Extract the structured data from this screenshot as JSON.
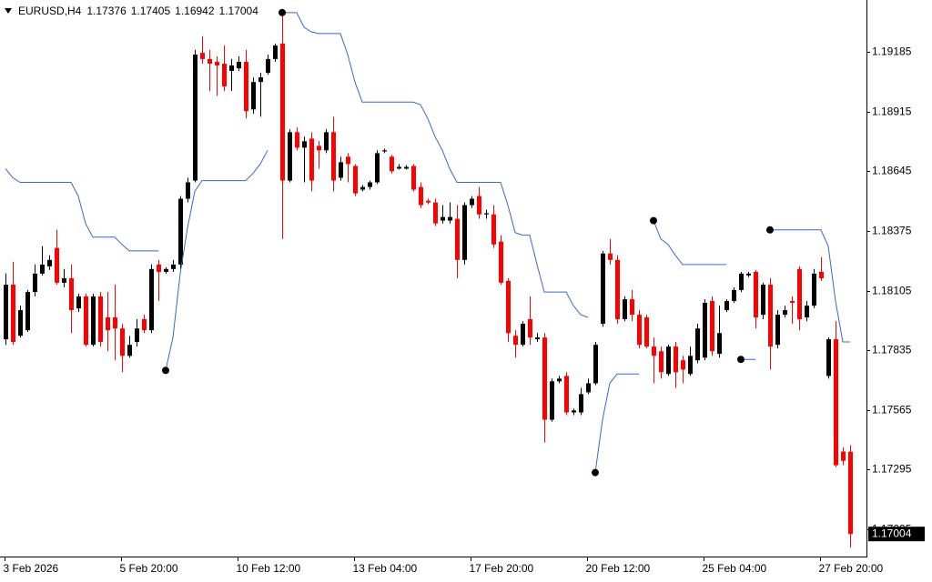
{
  "chart_data": {
    "type": "candlestick",
    "title": "EURUSD,H4",
    "up_color": "#000000",
    "down_color": "#ff0000",
    "line_color": "#3a66d4",
    "dot_color": "#000000",
    "ylim": [
      1.16902,
      1.1942
    ],
    "yticks": [
      1.19185,
      1.18915,
      1.18645,
      1.18375,
      1.18105,
      1.17835,
      1.17565,
      1.17295,
      1.17025
    ],
    "categories": [
      "3 Feb 2026",
      null,
      null,
      null,
      null,
      null,
      null,
      null,
      null,
      null,
      null,
      null,
      null,
      null,
      null,
      null,
      "5 Feb 20:00",
      null,
      null,
      null,
      null,
      null,
      null,
      null,
      null,
      null,
      null,
      null,
      null,
      null,
      null,
      null,
      "10 Feb 12:00",
      null,
      null,
      null,
      null,
      null,
      null,
      null,
      null,
      null,
      null,
      null,
      null,
      null,
      null,
      null,
      "13 Feb 04:00",
      null,
      null,
      null,
      null,
      null,
      null,
      null,
      null,
      null,
      null,
      null,
      null,
      null,
      null,
      null,
      "17 Feb 20:00",
      null,
      null,
      null,
      null,
      null,
      null,
      null,
      null,
      null,
      null,
      null,
      null,
      null,
      null,
      null,
      "20 Feb 12:00",
      null,
      null,
      null,
      null,
      null,
      null,
      null,
      null,
      null,
      null,
      null,
      null,
      null,
      null,
      null,
      "25 Feb 04:00",
      null,
      null,
      null,
      null,
      null,
      null,
      null,
      null,
      null,
      null,
      null,
      null,
      null,
      null,
      null,
      "27 Feb 20:00",
      null,
      null,
      null,
      null
    ],
    "ohlc": [
      [
        1.17885,
        1.18182,
        1.1786,
        1.18132
      ],
      [
        1.18132,
        1.18236,
        1.1786,
        1.17873
      ],
      [
        1.17901,
        1.18037,
        1.17893,
        1.18017
      ],
      [
        1.17926,
        1.18108,
        1.17918,
        1.18099
      ],
      [
        1.18099,
        1.18223,
        1.18079,
        1.18182
      ],
      [
        1.18182,
        1.18306,
        1.18174,
        1.18223
      ],
      [
        1.18215,
        1.18265,
        1.18199,
        1.18244
      ],
      [
        1.18298,
        1.1838,
        1.18132,
        1.18141
      ],
      [
        1.18141,
        1.18203,
        1.1812,
        1.18161
      ],
      [
        1.18161,
        1.18223,
        1.17913,
        1.18017
      ],
      [
        1.18025,
        1.18091,
        1.18008,
        1.18079
      ],
      [
        1.18079,
        1.18091,
        1.17852,
        1.1786
      ],
      [
        1.1786,
        1.18091,
        1.17852,
        1.18079
      ],
      [
        1.18079,
        1.18099,
        1.17852,
        1.17873
      ],
      [
        1.17984,
        1.18099,
        1.17831,
        1.17926
      ],
      [
        1.17984,
        1.18132,
        1.1779,
        1.17934
      ],
      [
        1.17934,
        1.17955,
        1.17736,
        1.1781
      ],
      [
        1.1781,
        1.17901,
        1.17802,
        1.1786
      ],
      [
        1.17873,
        1.17976,
        1.17852,
        1.17934
      ],
      [
        1.17976,
        1.17996,
        1.17913,
        1.17926
      ],
      [
        1.17926,
        1.18223,
        1.17913,
        1.18203
      ],
      [
        1.18223,
        1.18244,
        1.18058,
        1.1819
      ],
      [
        1.1819,
        1.18211,
        1.18182,
        1.18203
      ],
      [
        1.18203,
        1.18244,
        1.1819,
        1.18223
      ],
      [
        1.18223,
        1.18533,
        1.18203,
        1.18521
      ],
      [
        1.18521,
        1.18616,
        1.18504,
        1.18595
      ],
      [
        1.18603,
        1.19194,
        1.18595,
        1.19173
      ],
      [
        1.19181,
        1.19256,
        1.19132,
        1.19153
      ],
      [
        1.19153,
        1.19194,
        1.19008,
        1.19132
      ],
      [
        1.1914,
        1.19165,
        1.18987,
        1.19124
      ],
      [
        1.19132,
        1.19214,
        1.19008,
        1.19029
      ],
      [
        1.19099,
        1.19153,
        1.19008,
        1.19124
      ],
      [
        1.19111,
        1.19165,
        1.19099,
        1.1914
      ],
      [
        1.1914,
        1.19194,
        1.18884,
        1.18917
      ],
      [
        1.18925,
        1.1907,
        1.18905,
        1.19049
      ],
      [
        1.19049,
        1.19091,
        1.18892,
        1.1907
      ],
      [
        1.19091,
        1.19173,
        1.19082,
        1.19153
      ],
      [
        1.19153,
        1.19223,
        1.1914,
        1.19214
      ],
      [
        1.19223,
        1.1938,
        1.18339,
        1.18603
      ],
      [
        1.18603,
        1.18835,
        1.18595,
        1.18822
      ],
      [
        1.18822,
        1.18843,
        1.1874,
        1.18752
      ],
      [
        1.18752,
        1.18802,
        1.18595,
        1.18781
      ],
      [
        1.18793,
        1.18822,
        1.18554,
        1.18603
      ],
      [
        1.1876,
        1.18781,
        1.18657,
        1.1874
      ],
      [
        1.1874,
        1.18835,
        1.18727,
        1.18822
      ],
      [
        1.18822,
        1.18892,
        1.18554,
        1.18603
      ],
      [
        1.18616,
        1.18711,
        1.18603,
        1.18686
      ],
      [
        1.18711,
        1.18727,
        1.18595,
        1.18678
      ],
      [
        1.18669,
        1.18678,
        1.18533,
        1.18545
      ],
      [
        1.18562,
        1.18583,
        1.18554,
        1.18574
      ],
      [
        1.18574,
        1.18603,
        1.18562,
        1.18595
      ],
      [
        1.18595,
        1.1874,
        1.18587,
        1.18727
      ],
      [
        1.18735,
        1.18748,
        1.18727,
        1.1874
      ],
      [
        1.18711,
        1.18719,
        1.18636,
        1.18645
      ],
      [
        1.18657,
        1.18678,
        1.18653,
        1.18665
      ],
      [
        1.18657,
        1.18673,
        1.18653,
        1.18665
      ],
      [
        1.18669,
        1.18678,
        1.18554,
        1.18562
      ],
      [
        1.18574,
        1.18595,
        1.18479,
        1.18492
      ],
      [
        1.18512,
        1.18521,
        1.18496,
        1.18504
      ],
      [
        1.18504,
        1.18521,
        1.18397,
        1.18409
      ],
      [
        1.18422,
        1.18492,
        1.18409,
        1.18438
      ],
      [
        1.18422,
        1.18504,
        1.18409,
        1.18438
      ],
      [
        1.1843,
        1.18492,
        1.18161,
        1.18244
      ],
      [
        1.18244,
        1.18504,
        1.18223,
        1.18492
      ],
      [
        1.18492,
        1.18533,
        1.18479,
        1.18521
      ],
      [
        1.18533,
        1.18574,
        1.1843,
        1.1845
      ],
      [
        1.1845,
        1.18471,
        1.1843,
        1.18455
      ],
      [
        1.1845,
        1.18492,
        1.18298,
        1.18314
      ],
      [
        1.18327,
        1.18356,
        1.18132,
        1.18141
      ],
      [
        1.18149,
        1.18161,
        1.17873,
        1.17913
      ],
      [
        1.17901,
        1.17926,
        1.17802,
        1.1786
      ],
      [
        1.1786,
        1.17967,
        1.17852,
        1.17955
      ],
      [
        1.17976,
        1.18079,
        1.1786,
        1.17893
      ],
      [
        1.17885,
        1.17913,
        1.17873,
        1.17893
      ],
      [
        1.17893,
        1.17913,
        1.17418,
        1.17521
      ],
      [
        1.17521,
        1.17707,
        1.17513,
        1.17695
      ],
      [
        1.17695,
        1.17719,
        1.17686,
        1.17707
      ],
      [
        1.17719,
        1.17736,
        1.17542,
        1.17554
      ],
      [
        1.17554,
        1.17571,
        1.17542,
        1.17563
      ],
      [
        1.17554,
        1.17665,
        1.17542,
        1.17637
      ],
      [
        1.17645,
        1.17707,
        1.17637,
        1.17686
      ],
      [
        1.17686,
        1.17873,
        1.17678,
        1.1786
      ],
      [
        1.17955,
        1.18285,
        1.17942,
        1.18273
      ],
      [
        1.18273,
        1.18339,
        1.18223,
        1.18244
      ],
      [
        1.18244,
        1.18265,
        1.17955,
        1.17976
      ],
      [
        1.17976,
        1.18079,
        1.17967,
        1.18066
      ],
      [
        1.18066,
        1.18108,
        1.17967,
        1.17996
      ],
      [
        1.17996,
        1.18017,
        1.17844,
        1.1786
      ],
      [
        1.17984,
        1.17996,
        1.17844,
        1.17852
      ],
      [
        1.17852,
        1.17893,
        1.17686,
        1.1781
      ],
      [
        1.17831,
        1.17852,
        1.17707,
        1.17736
      ],
      [
        1.17728,
        1.1786,
        1.17719,
        1.17852
      ],
      [
        1.17852,
        1.17873,
        1.17665,
        1.17736
      ],
      [
        1.1779,
        1.1781,
        1.17686,
        1.17748
      ],
      [
        1.17728,
        1.17852,
        1.17719,
        1.1781
      ],
      [
        1.1779,
        1.17955,
        1.17777,
        1.17934
      ],
      [
        1.17802,
        1.18066,
        1.1779,
        1.1805
      ],
      [
        1.18058,
        1.18079,
        1.1781,
        1.17831
      ],
      [
        1.17819,
        1.18037,
        1.17802,
        1.17913
      ],
      [
        1.18017,
        1.18066,
        1.18008,
        1.18058
      ],
      [
        1.18058,
        1.1812,
        1.1805,
        1.18108
      ],
      [
        1.18108,
        1.1819,
        1.18099,
        1.18182
      ],
      [
        1.18174,
        1.1819,
        1.18166,
        1.18182
      ],
      [
        1.1819,
        1.18199,
        1.17934,
        1.17984
      ],
      [
        1.17996,
        1.18141,
        1.17976,
        1.18132
      ],
      [
        1.18132,
        1.18161,
        1.17748,
        1.17852
      ],
      [
        1.1786,
        1.18017,
        1.17844,
        1.17996
      ],
      [
        1.17996,
        1.18037,
        1.17984,
        1.18017
      ],
      [
        1.18058,
        1.18079,
        1.17955,
        1.1805
      ],
      [
        1.18203,
        1.18215,
        1.17926,
        1.17976
      ],
      [
        1.17984,
        1.18058,
        1.17967,
        1.18037
      ],
      [
        1.18037,
        1.18203,
        1.18025,
        1.18182
      ],
      [
        1.1819,
        1.18256,
        1.18149,
        1.18161
      ],
      [
        1.17719,
        1.17893,
        1.17707,
        1.17885
      ],
      [
        1.17885,
        1.17967,
        1.17306,
        1.17315
      ],
      [
        1.17377,
        1.17397,
        1.17315,
        1.17335
      ],
      [
        1.17376,
        1.17405,
        1.16942,
        1.17004
      ]
    ],
    "series": [
      {
        "color": "#3a66d4",
        "values": [
          1.18657,
          1.18616,
          1.18595,
          1.18595,
          1.18595,
          1.18595,
          1.18595,
          1.18595,
          1.18595,
          1.18595,
          1.18533,
          1.18409,
          1.18347,
          1.18347,
          1.18347,
          1.18347,
          1.18314,
          1.18285,
          1.18285,
          1.18285,
          1.18285,
          1.18285,
          null,
          null,
          null,
          null,
          null,
          null,
          null,
          null,
          null,
          null,
          null,
          null,
          null,
          null,
          null,
          null,
          1.19363,
          1.19363,
          1.19363,
          1.19297,
          1.19276,
          1.19268,
          1.19268,
          1.19268,
          1.19268,
          1.19173,
          1.19049,
          1.18958,
          1.18958,
          1.18958,
          1.18958,
          1.18958,
          1.18958,
          1.18958,
          1.18958,
          1.18946,
          1.18884,
          1.18802,
          1.1874,
          1.18657,
          1.18595,
          1.18595,
          1.18595,
          1.18595,
          1.18595,
          1.18595,
          1.18595,
          1.18492,
          1.18368,
          1.18356,
          1.18356,
          1.18223,
          1.18099,
          1.18099,
          1.18099,
          1.18099,
          1.18037,
          1.17996,
          1.17984,
          null,
          null,
          null,
          null,
          null,
          null,
          null,
          null,
          1.18422,
          1.18339,
          1.18314,
          1.18265,
          1.18223,
          1.18223,
          1.18223,
          1.18223,
          1.18223,
          1.18223,
          1.18223,
          null,
          null,
          null,
          null,
          null,
          1.1838,
          1.1838,
          1.1838,
          1.1838,
          1.1838,
          1.1838,
          1.1838,
          1.1838,
          1.18306,
          1.18058,
          1.17873,
          1.17873
        ]
      },
      {
        "color": "#3a66d4",
        "values": [
          null,
          null,
          null,
          null,
          null,
          null,
          null,
          null,
          null,
          null,
          null,
          null,
          null,
          null,
          null,
          null,
          null,
          null,
          null,
          null,
          null,
          null,
          1.17744,
          1.17893,
          1.18182,
          1.18389,
          1.18554,
          1.18603,
          1.18603,
          1.18603,
          1.18603,
          1.18603,
          1.18603,
          1.18603,
          1.18636,
          1.18678,
          1.1874,
          null,
          null,
          null,
          null,
          null,
          null,
          null,
          null,
          null,
          null,
          null,
          null,
          null,
          null,
          null,
          null,
          null,
          null,
          null,
          null,
          null,
          null,
          null,
          null,
          null,
          null,
          null,
          null,
          null,
          null,
          null,
          null,
          null,
          null,
          null,
          null,
          null,
          null,
          null,
          null,
          null,
          null,
          null,
          null,
          1.17282,
          1.17521,
          1.17686,
          1.17728,
          1.17728,
          1.17728,
          1.17728,
          null,
          null,
          null,
          null,
          null,
          null,
          null,
          null,
          null,
          null,
          null,
          null,
          null,
          1.17794,
          1.17794,
          1.17794,
          null,
          null,
          null,
          null,
          null,
          null,
          null,
          null,
          null,
          null,
          null,
          null,
          null
        ]
      }
    ]
  }
}
